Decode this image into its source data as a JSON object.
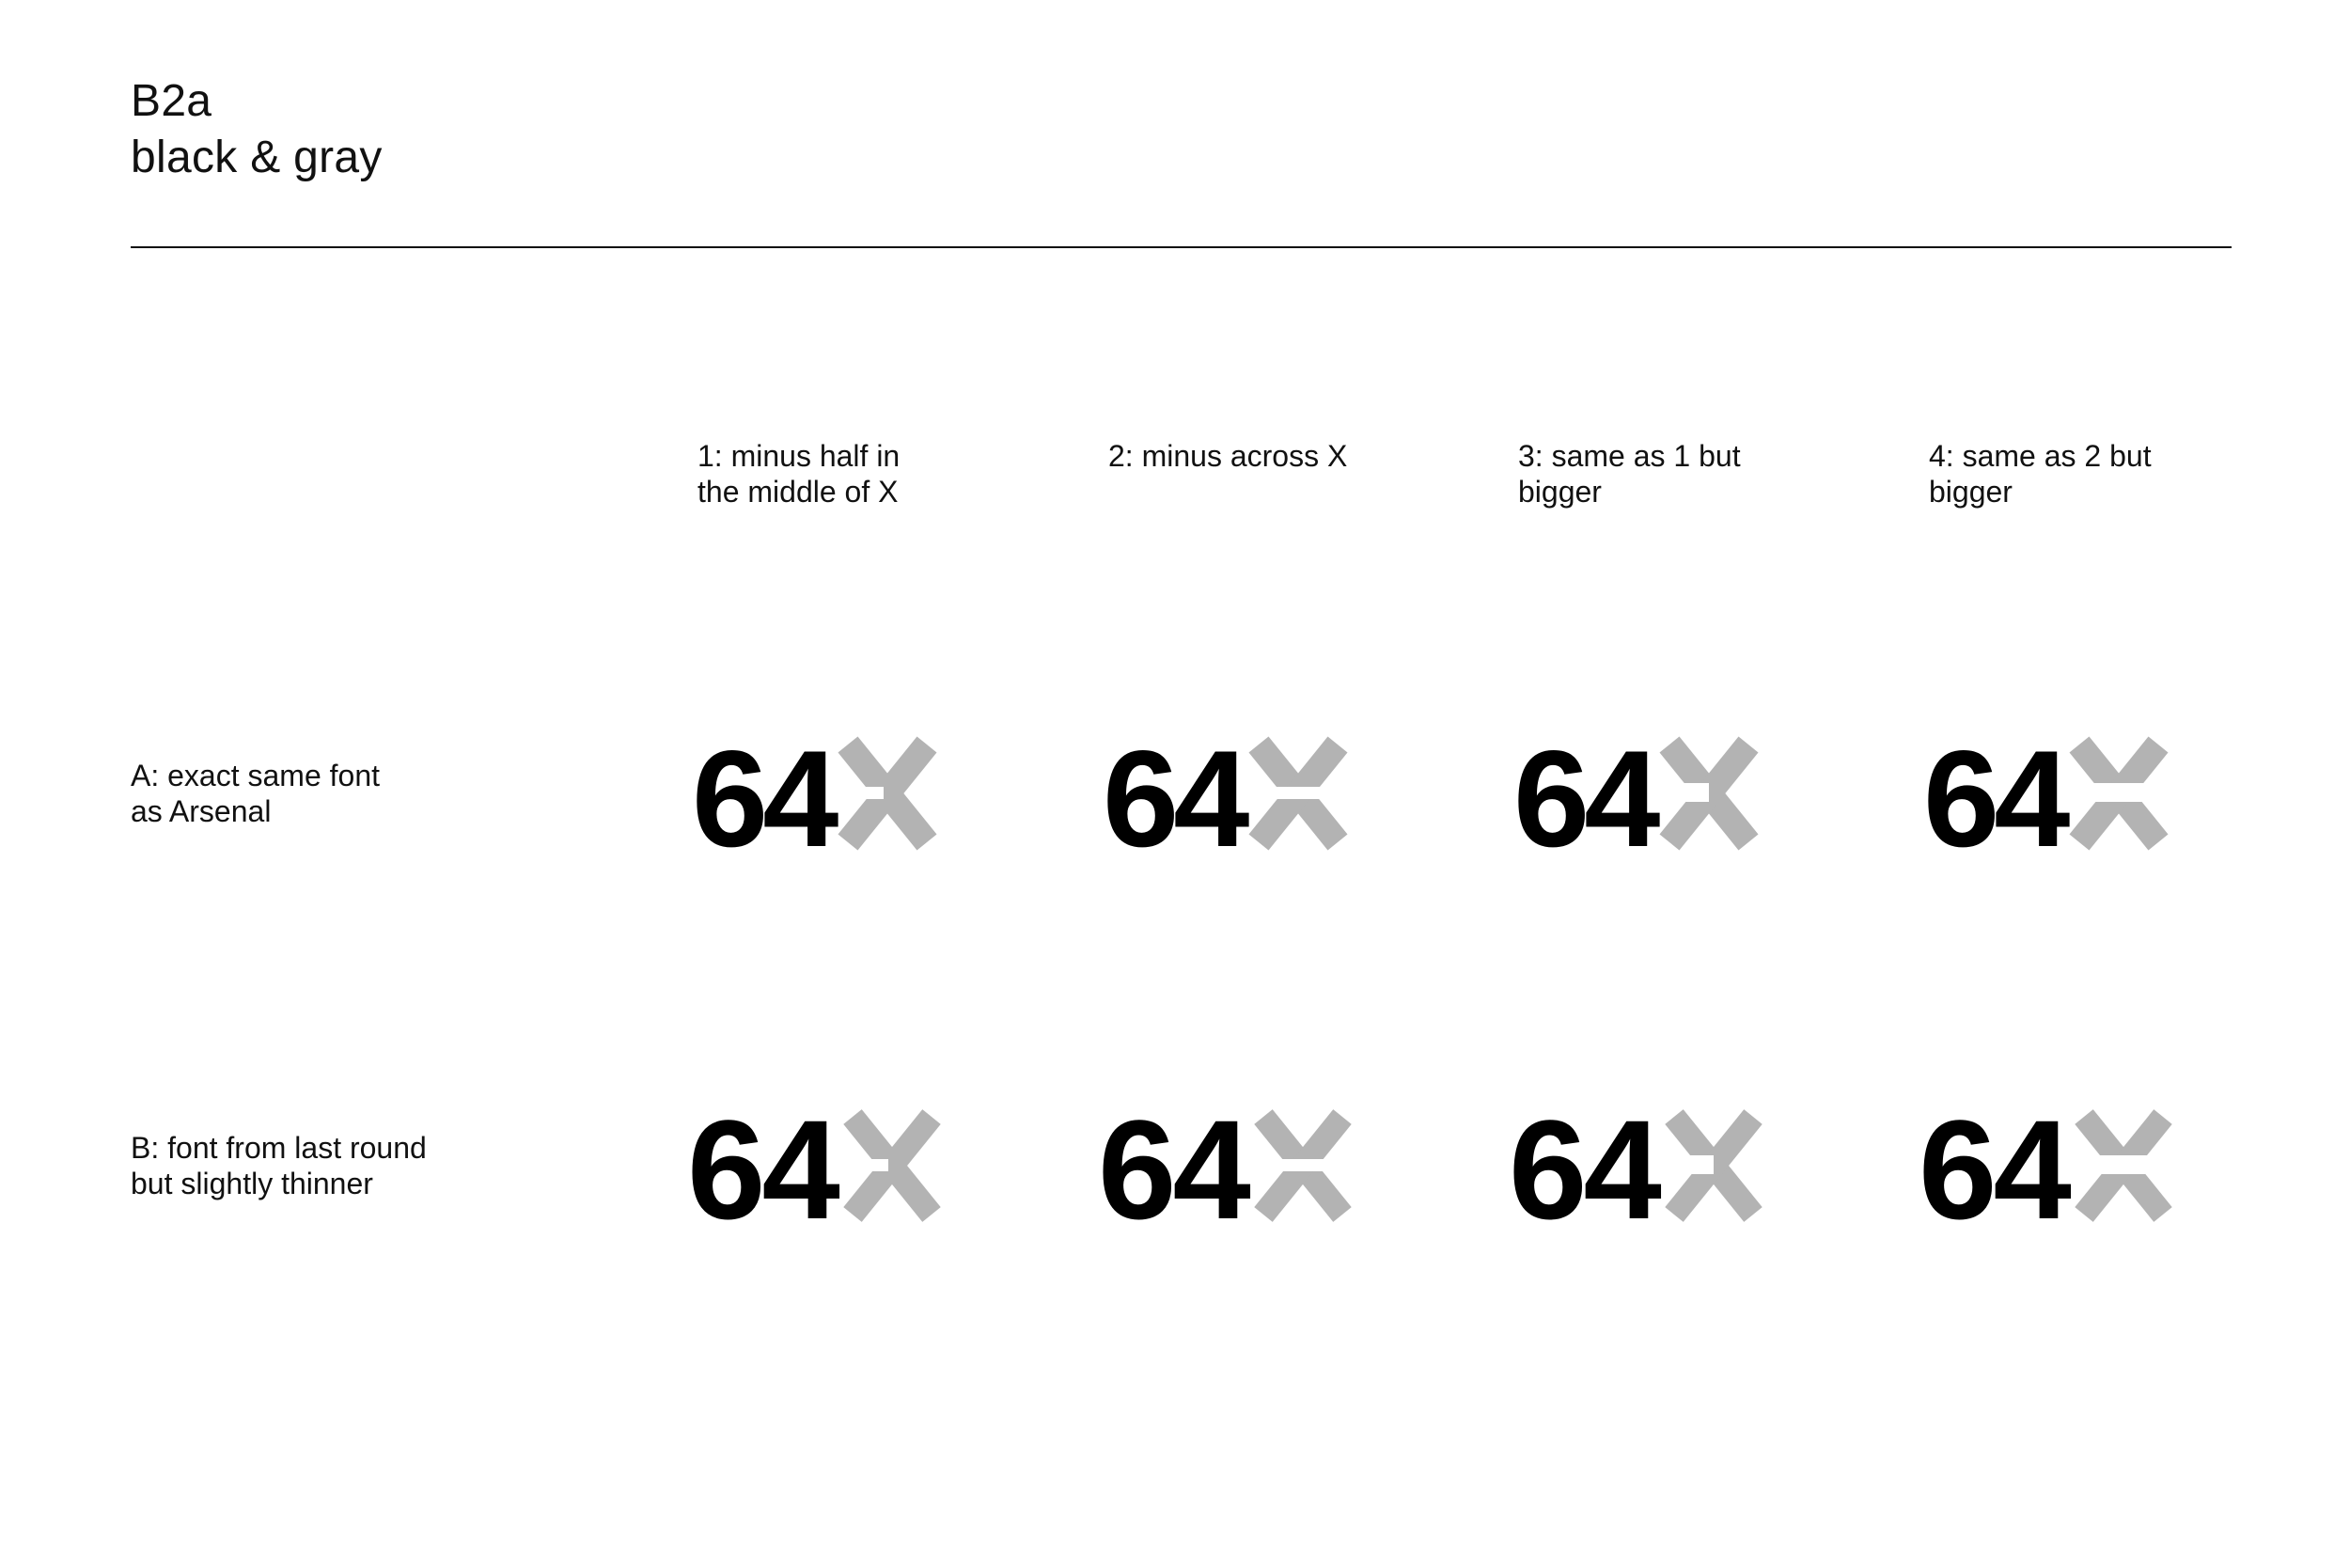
{
  "header": {
    "title": "B2a",
    "subtitle": "black & gray"
  },
  "columns": [
    {
      "lines": [
        "1: minus half in",
        "the middle of X"
      ]
    },
    {
      "lines": [
        "2: minus across X"
      ]
    },
    {
      "lines": [
        "3: same as 1 but",
        "bigger"
      ]
    },
    {
      "lines": [
        "4: same as 2 but",
        "bigger"
      ]
    }
  ],
  "rows": [
    {
      "lines": [
        "A: exact same font",
        "as Arsenal"
      ]
    },
    {
      "lines": [
        "B: font from last round",
        "but slightly thinner"
      ]
    }
  ],
  "mark": {
    "number": "64",
    "letter": "X"
  },
  "colors": {
    "number": "#000000",
    "letter": "#b3b3b3",
    "rule": "#111111"
  }
}
